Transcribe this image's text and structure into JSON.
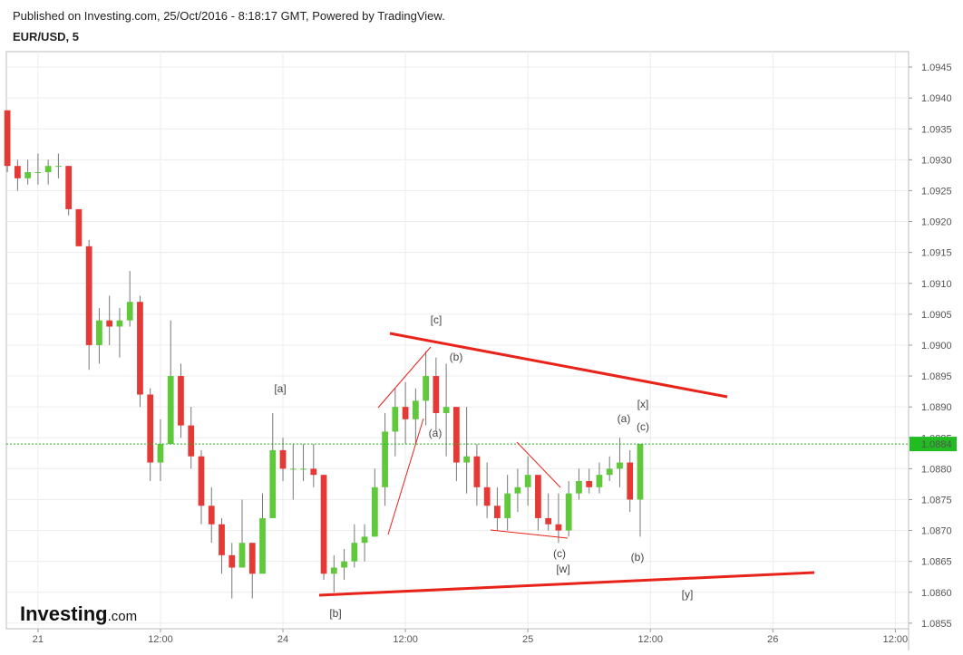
{
  "chart_data": {
    "type": "candlestick",
    "subtitle": "Published on Investing.com, 25/Oct/2016 - 8:18:17 GMT, Powered by TradingView.",
    "title": "EUR/USD, 5",
    "x": [
      -3,
      -2,
      -1,
      0,
      1,
      2,
      3,
      4,
      5,
      6,
      7,
      8,
      9,
      10,
      11,
      12,
      13,
      14,
      15,
      16,
      17,
      18,
      19,
      20,
      21,
      22,
      23,
      24,
      25,
      26,
      27,
      28,
      29,
      30,
      31,
      32,
      33,
      34,
      35,
      36,
      37,
      38,
      39,
      40,
      41,
      42,
      43,
      44,
      45,
      46,
      47,
      48,
      49,
      50,
      51,
      52,
      53,
      54,
      55,
      56,
      57,
      58,
      59
    ],
    "open": [
      1.0938,
      1.0929,
      1.0927,
      1.0928,
      1.0928,
      1.0929,
      1.0929,
      1.0922,
      1.0916,
      1.09,
      1.0904,
      1.0903,
      1.0904,
      1.0907,
      1.0892,
      1.0881,
      1.0884,
      1.0895,
      1.0887,
      1.0882,
      1.0874,
      1.0871,
      1.0866,
      1.0864,
      1.0868,
      1.0863,
      1.0872,
      1.0883,
      1.088,
      1.088,
      1.088,
      1.0879,
      1.0863,
      1.0864,
      1.0865,
      1.0868,
      1.0869,
      1.0877,
      1.0886,
      1.089,
      1.0888,
      1.0891,
      1.0895,
      1.0889,
      1.089,
      1.0881,
      1.0882,
      1.0877,
      1.0874,
      1.0872,
      1.0876,
      1.0877,
      1.0879,
      1.0872,
      1.0871,
      1.087,
      1.0876,
      1.0878,
      1.0877,
      1.0879,
      1.088,
      1.0881,
      1.0875
    ],
    "high": [
      1.0938,
      1.093,
      1.093,
      1.0931,
      1.093,
      1.0931,
      1.0929,
      1.0922,
      1.0917,
      1.0906,
      1.0908,
      1.0906,
      1.0912,
      1.0908,
      1.0893,
      1.0888,
      1.0904,
      1.0897,
      1.089,
      1.0883,
      1.0877,
      1.0872,
      1.0868,
      1.0875,
      1.0868,
      1.0876,
      1.0889,
      1.0885,
      1.0884,
      1.0884,
      1.0884,
      1.0879,
      1.0866,
      1.0867,
      1.0871,
      1.0871,
      1.088,
      1.0889,
      1.0893,
      1.0894,
      1.0893,
      1.0899,
      1.0898,
      1.0897,
      1.089,
      1.089,
      1.0884,
      1.0881,
      1.0877,
      1.0879,
      1.088,
      1.0882,
      1.0879,
      1.0876,
      1.0876,
      1.0878,
      1.088,
      1.088,
      1.0881,
      1.0882,
      1.0885,
      1.0883,
      1.0884
    ],
    "low": [
      1.0928,
      1.0925,
      1.0926,
      1.0926,
      1.0926,
      1.0927,
      1.0921,
      1.0916,
      1.0896,
      1.0897,
      1.09,
      1.0898,
      1.0903,
      1.089,
      1.0878,
      1.0878,
      1.0884,
      1.0885,
      1.088,
      1.0871,
      1.0868,
      1.0863,
      1.0859,
      1.0864,
      1.0859,
      1.0863,
      1.0872,
      1.0878,
      1.0875,
      1.0878,
      1.0877,
      1.0862,
      1.086,
      1.0862,
      1.0864,
      1.0865,
      1.0869,
      1.0874,
      1.0882,
      1.0884,
      1.0884,
      1.0887,
      1.0886,
      1.0882,
      1.0878,
      1.0876,
      1.0874,
      1.0872,
      1.087,
      1.087,
      1.0873,
      1.0874,
      1.087,
      1.087,
      1.0868,
      1.0869,
      1.0875,
      1.0876,
      1.0876,
      1.0878,
      1.0877,
      1.0873,
      1.0869
    ],
    "close": [
      1.0929,
      1.0927,
      1.0928,
      1.0928,
      1.0929,
      1.0929,
      1.0922,
      1.0916,
      1.09,
      1.0904,
      1.0903,
      1.0904,
      1.0907,
      1.0892,
      1.0881,
      1.0884,
      1.0895,
      1.0887,
      1.0882,
      1.0874,
      1.0871,
      1.0866,
      1.0864,
      1.0868,
      1.0863,
      1.0872,
      1.0883,
      1.088,
      1.088,
      1.088,
      1.0879,
      1.0863,
      1.0864,
      1.0865,
      1.0868,
      1.0869,
      1.0877,
      1.0886,
      1.089,
      1.0888,
      1.0891,
      1.0895,
      1.0889,
      1.089,
      1.0881,
      1.0882,
      1.0877,
      1.0874,
      1.0872,
      1.0876,
      1.0877,
      1.0879,
      1.0872,
      1.0871,
      1.087,
      1.0876,
      1.0878,
      1.0877,
      1.0879,
      1.088,
      1.0881,
      1.0875,
      1.0884
    ],
    "up_color": "#5fc83b",
    "down_color": "#e53935",
    "wick_color": "#777777",
    "xlim": [
      -3.1,
      85.3
    ],
    "xticks": [
      {
        "value": 0,
        "label": "21"
      },
      {
        "value": 12,
        "label": "12:00"
      },
      {
        "value": 24,
        "label": "24"
      },
      {
        "value": 36,
        "label": "12:00"
      },
      {
        "value": 48,
        "label": "25"
      },
      {
        "value": 60,
        "label": "12:00"
      },
      {
        "value": 72,
        "label": "26"
      },
      {
        "value": 84,
        "label": "12:00"
      }
    ],
    "ylim": [
      1.08541,
      1.09475
    ],
    "yticks": [
      1.0855,
      {
        "value": 1.086,
        "label": "1.0860"
      },
      1.0865,
      {
        "value": 1.087,
        "label": "1.0870"
      },
      1.0875,
      {
        "value": 1.088,
        "label": "1.0880"
      },
      1.0885,
      {
        "value": 1.089,
        "label": "1.0890"
      },
      1.0895,
      {
        "value": 1.09,
        "label": "1.0900"
      },
      1.0905,
      {
        "value": 1.091,
        "label": "1.0910"
      },
      1.0915,
      {
        "value": 1.092,
        "label": "1.0920"
      },
      1.0925,
      {
        "value": 1.093,
        "label": "1.0930"
      },
      1.0935,
      {
        "value": 1.094,
        "label": "1.0940"
      },
      1.0945
    ],
    "grid": true,
    "last_price": 1.0884,
    "last_price_color": "#22bb22",
    "annotations": [
      "[c]",
      "[a]",
      "(b)",
      "(a)",
      "[b]",
      "[x]",
      "(a)",
      "(c)",
      "(c)",
      "[w]",
      "(b)",
      "[y]"
    ]
  },
  "brand": {
    "name": "Investing",
    "suffix": ".com"
  }
}
